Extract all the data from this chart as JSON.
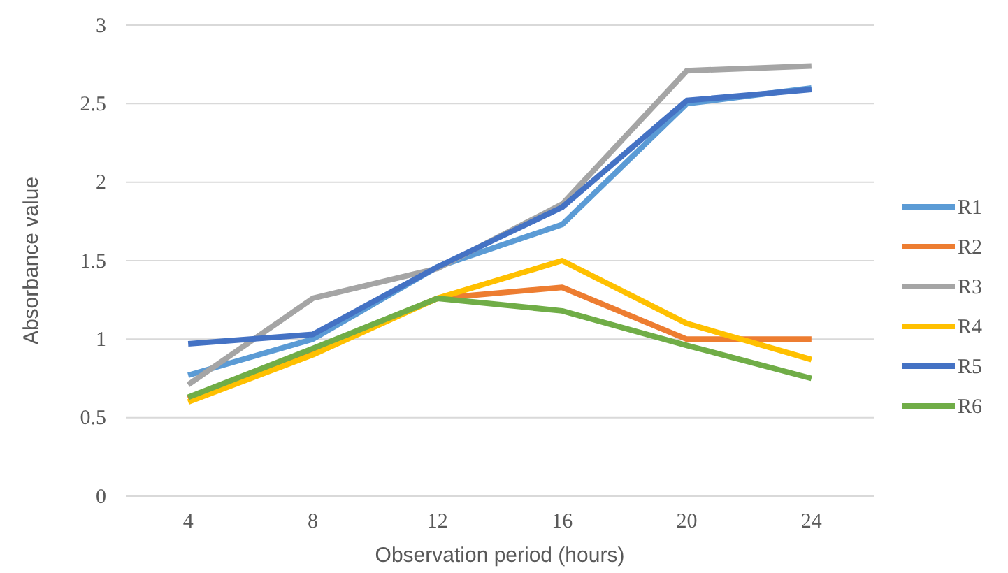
{
  "chart_data": {
    "type": "line",
    "xlabel": "Observation period (hours)",
    "ylabel": "Absorbance value",
    "categories": [
      "4",
      "8",
      "12",
      "16",
      "20",
      "24"
    ],
    "ylim": [
      0,
      3
    ],
    "yticks": [
      0,
      0.5,
      1,
      1.5,
      2,
      2.5,
      3
    ],
    "grid": "y",
    "legend": "right",
    "marker": "none",
    "line_style": "solid",
    "series": [
      {
        "name": "R1",
        "color": "#5b9bd5",
        "values": [
          0.77,
          1.0,
          1.46,
          1.73,
          2.5,
          2.6
        ]
      },
      {
        "name": "R2",
        "color": "#ed7d31",
        "values": [
          0.62,
          0.92,
          1.26,
          1.33,
          1.0,
          1.0
        ]
      },
      {
        "name": "R3",
        "color": "#a5a5a5",
        "values": [
          0.71,
          1.26,
          1.45,
          1.86,
          2.71,
          2.74
        ]
      },
      {
        "name": "R4",
        "color": "#ffc000",
        "values": [
          0.6,
          0.9,
          1.26,
          1.5,
          1.1,
          0.87
        ]
      },
      {
        "name": "R5",
        "color": "#4472c4",
        "values": [
          0.97,
          1.03,
          1.46,
          1.84,
          2.52,
          2.59
        ]
      },
      {
        "name": "R6",
        "color": "#70ad47",
        "values": [
          0.63,
          0.94,
          1.26,
          1.18,
          0.96,
          0.75
        ]
      }
    ]
  }
}
